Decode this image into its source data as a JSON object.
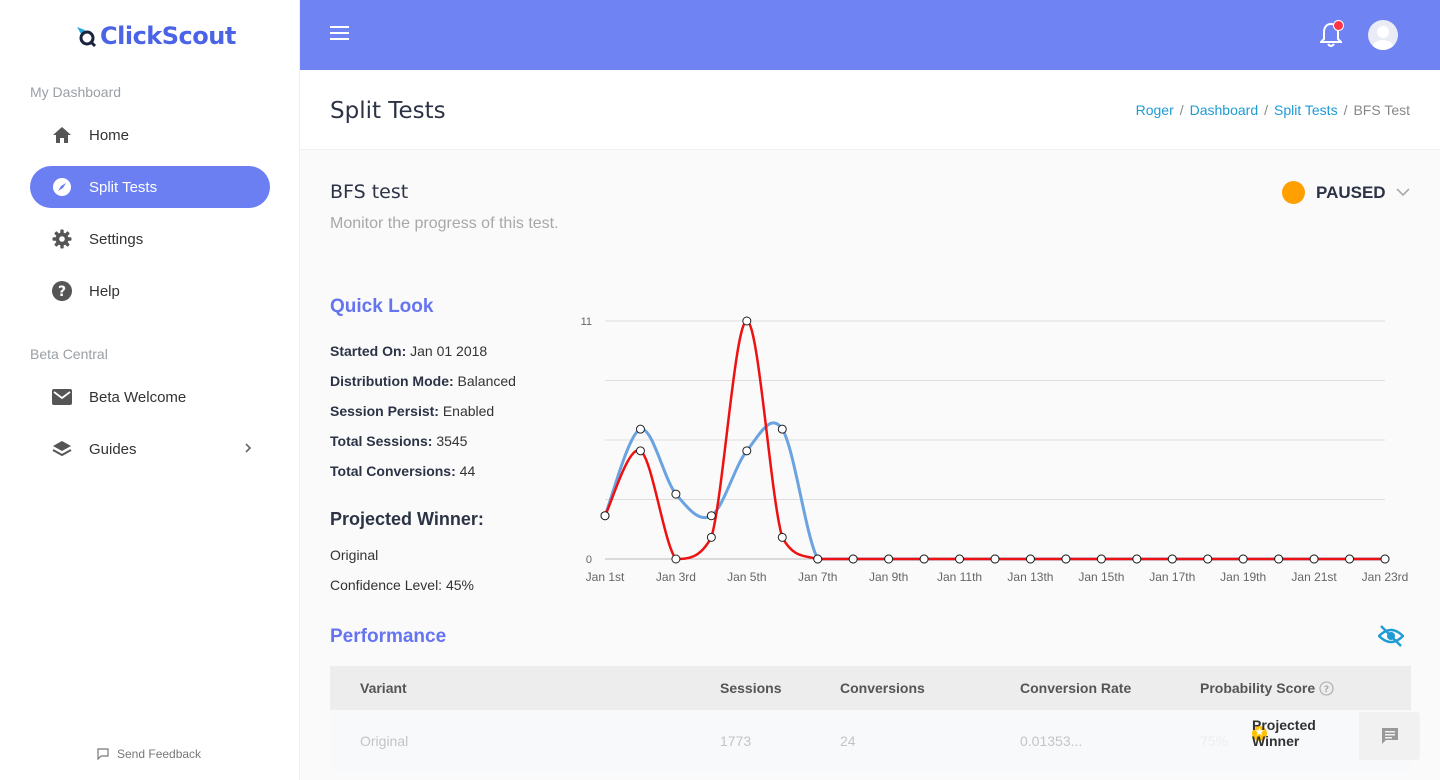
{
  "app": {
    "logo_text": "ClickScout"
  },
  "sidebar": {
    "section1": "My Dashboard",
    "section2": "Beta Central",
    "items": [
      {
        "label": "Home",
        "icon": "home-icon"
      },
      {
        "label": "Split Tests",
        "icon": "compass-icon",
        "active": true
      },
      {
        "label": "Settings",
        "icon": "gear-icon"
      },
      {
        "label": "Help",
        "icon": "help-icon"
      },
      {
        "label": "Beta Welcome",
        "icon": "mail-icon"
      },
      {
        "label": "Guides",
        "icon": "layers-icon"
      }
    ],
    "feedback": "Send Feedback"
  },
  "colors": {
    "topbar": "#7083f3",
    "accent": "#6574ef",
    "active_nav": "#6b7ff3",
    "status_paused": "#ffa000",
    "link": "#1e9bd4"
  },
  "header": {
    "title": "Split Tests",
    "breadcrumb": [
      "Roger",
      "Dashboard",
      "Split Tests",
      "BFS Test"
    ]
  },
  "test": {
    "title": "BFS test",
    "subtitle": "Monitor the progress of this test.",
    "status": "PAUSED"
  },
  "quick_look": {
    "heading": "Quick Look",
    "rows": [
      {
        "label": "Started On:",
        "value": "Jan 01 2018"
      },
      {
        "label": "Distribution Mode:",
        "value": "Balanced"
      },
      {
        "label": "Session Persist:",
        "value": "Enabled"
      },
      {
        "label": "Total Sessions:",
        "value": "3545"
      },
      {
        "label": "Total Conversions:",
        "value": "44"
      }
    ],
    "winner_heading": "Projected Winner:",
    "winner": "Original",
    "confidence": "Confidence Level: 45%"
  },
  "chart_data": {
    "type": "line",
    "ylim": [
      0,
      11
    ],
    "yticks": [
      "0",
      "11"
    ],
    "x_labels": [
      "Jan 1st",
      "Jan 3rd",
      "Jan 5th",
      "Jan 7th",
      "Jan 9th",
      "Jan 11th",
      "Jan 13th",
      "Jan 15th",
      "Jan 17th",
      "Jan 19th",
      "Jan 21st",
      "Jan 23rd"
    ],
    "series": [
      {
        "color": "#6aa3e0",
        "values": [
          2,
          6,
          3,
          2,
          5,
          6,
          0,
          0,
          0,
          0,
          0,
          0,
          0,
          0,
          0,
          0,
          0,
          0,
          0,
          0,
          0,
          0,
          0
        ]
      },
      {
        "color": "#ee1111",
        "values": [
          2,
          5,
          0,
          1,
          11,
          1,
          0,
          0,
          0,
          0,
          0,
          0,
          0,
          0,
          0,
          0,
          0,
          0,
          0,
          0,
          0,
          0,
          0
        ]
      }
    ],
    "grid": true
  },
  "performance": {
    "heading": "Performance",
    "columns": [
      "Variant",
      "Sessions",
      "Conversions",
      "Conversion Rate",
      "Probability Score"
    ],
    "rows": [
      {
        "variant": "Original",
        "sessions": "1773",
        "conversions": "24",
        "rate": "0.01353...",
        "score": "75%",
        "badge": "Projected Winner"
      }
    ]
  }
}
